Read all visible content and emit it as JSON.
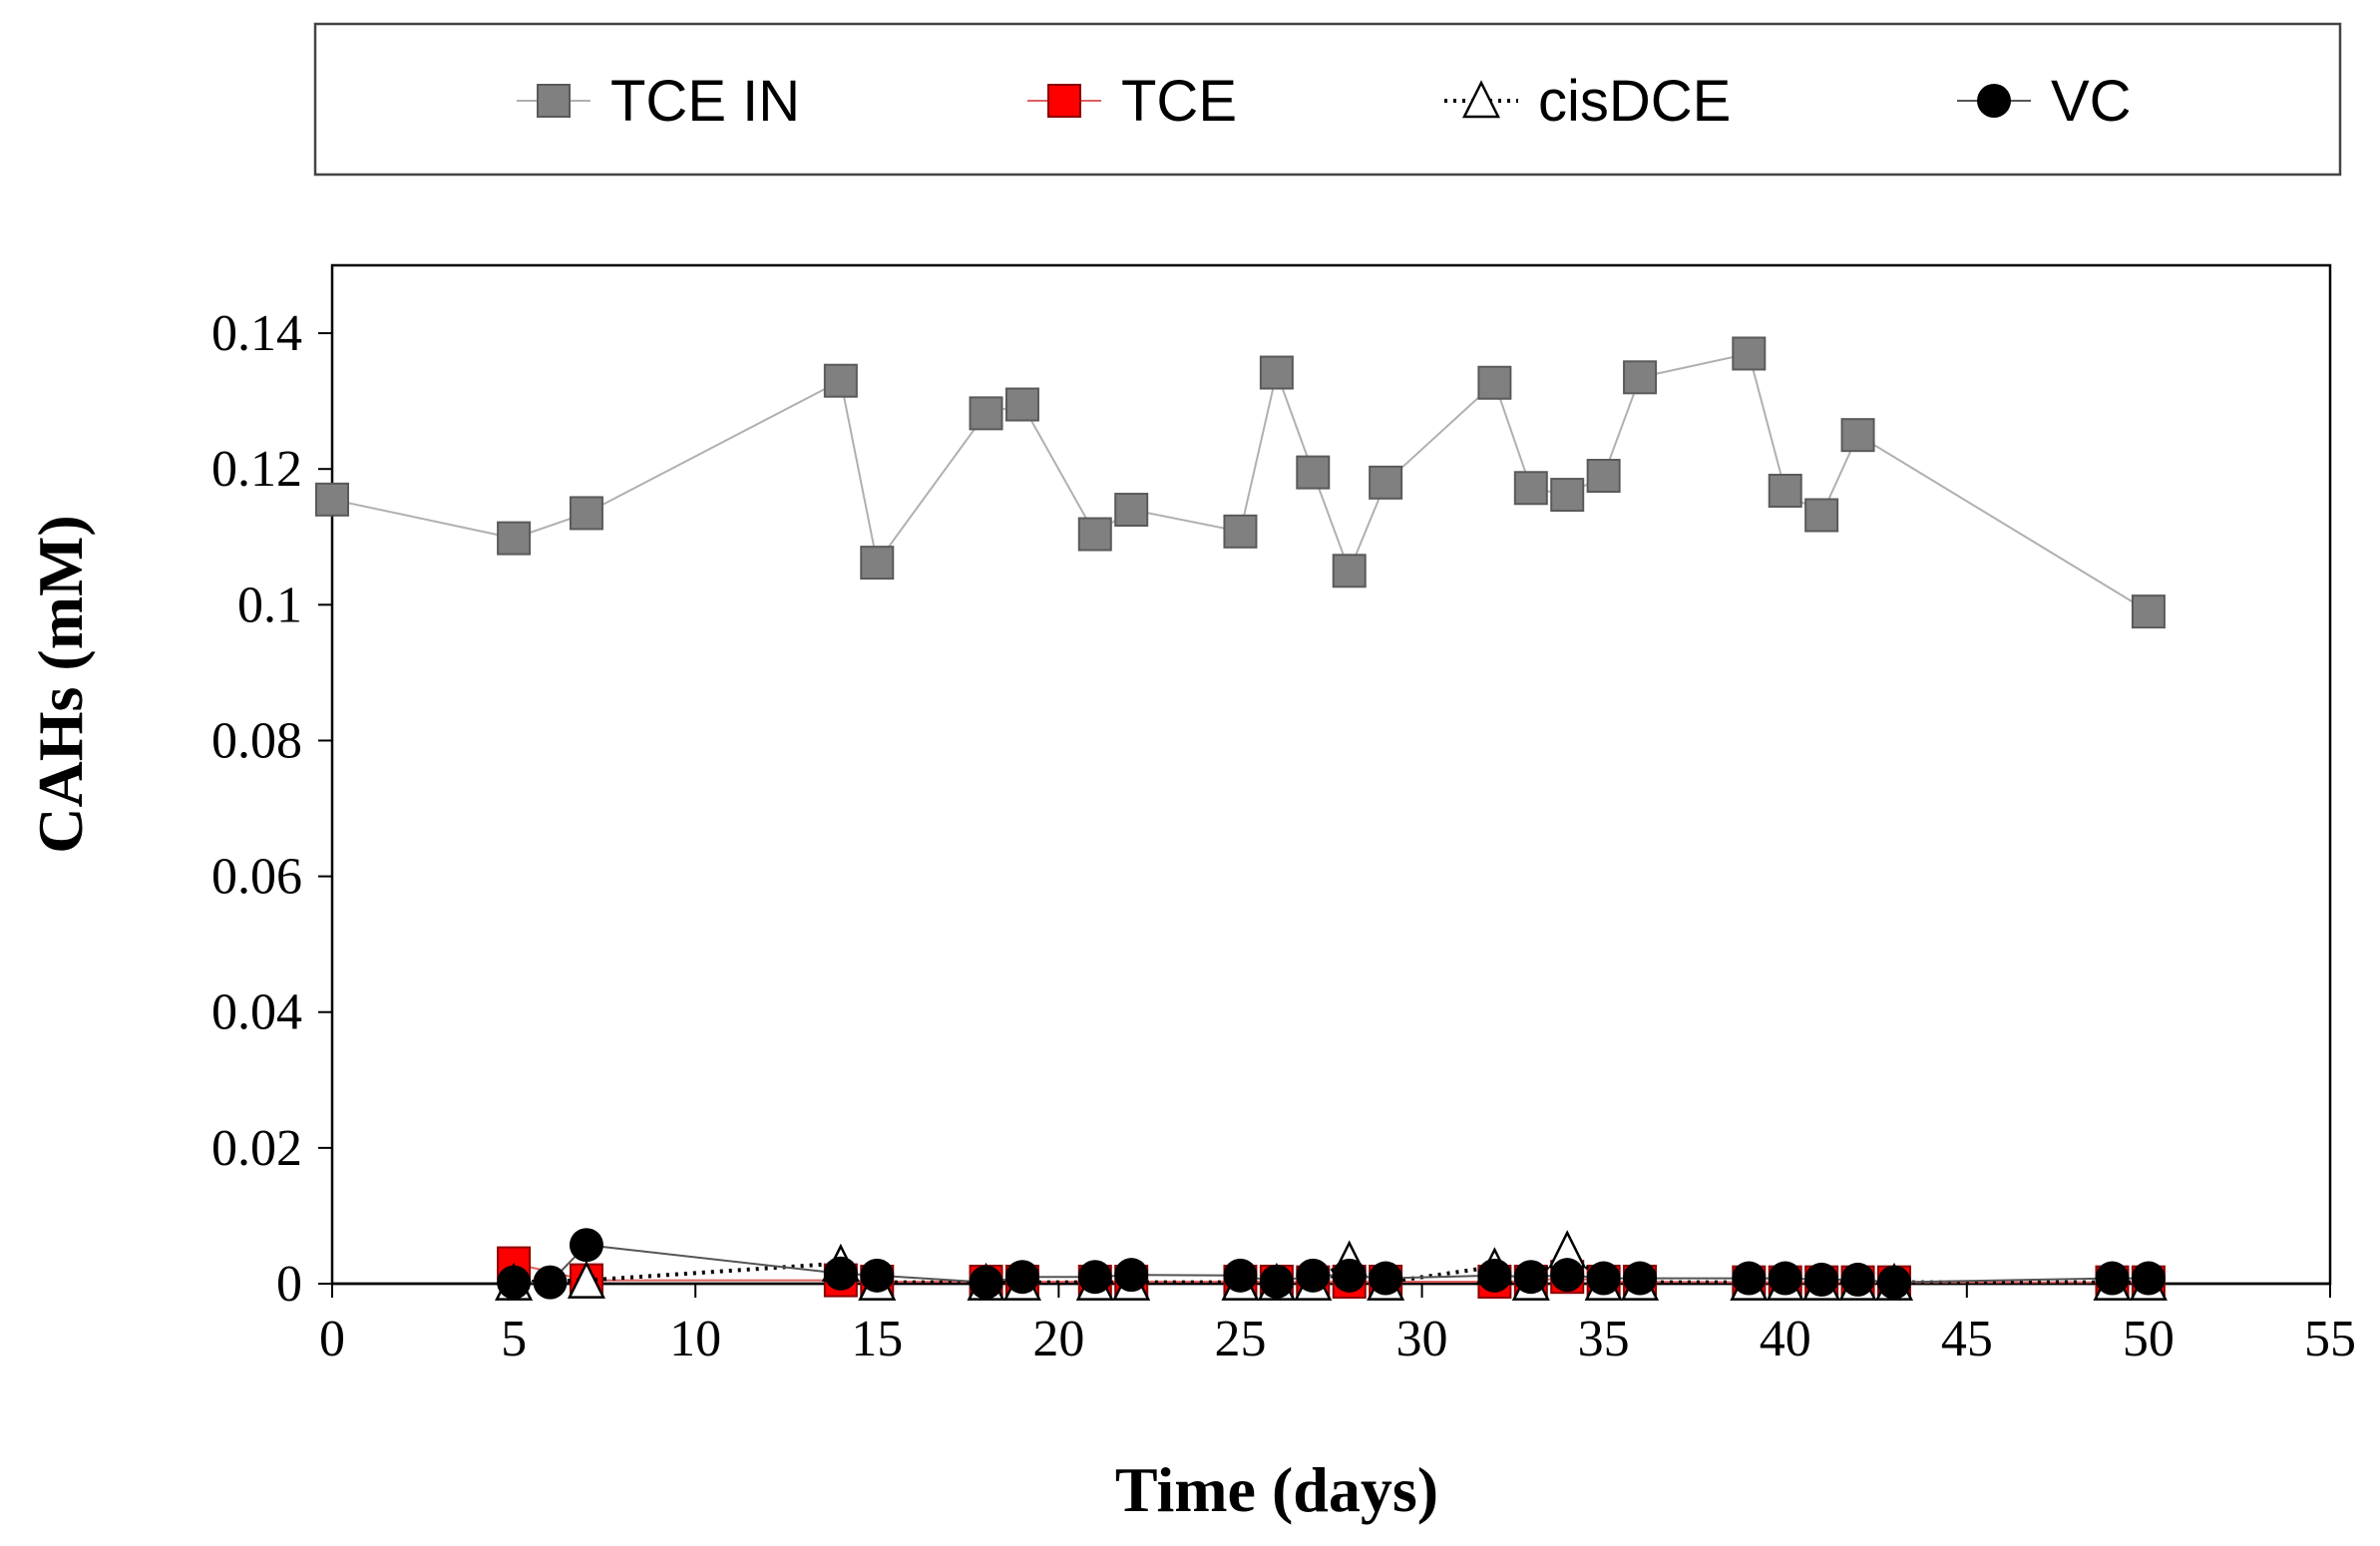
{
  "chart_data": {
    "type": "scatter",
    "title": "",
    "xlabel": "Time (days)",
    "ylabel": "CAHs (mM)",
    "xlim": [
      0,
      55
    ],
    "ylim": [
      0,
      0.15
    ],
    "xticks": [
      0,
      5,
      10,
      15,
      20,
      25,
      30,
      35,
      40,
      45,
      50,
      55
    ],
    "xtick_labels": [
      "0",
      "5",
      "10",
      "15",
      "20",
      "25",
      "30",
      "35",
      "40",
      "45",
      "50",
      "55"
    ],
    "yticks": [
      0,
      0.02,
      0.04,
      0.06,
      0.08,
      0.1,
      0.12,
      0.14
    ],
    "ytick_labels": [
      "0",
      "0.02",
      "0.04",
      "0.06",
      "0.08",
      "0.1",
      "0.12",
      "0.14"
    ],
    "grid": false,
    "legend_position": "top",
    "series": [
      {
        "name": "TCE IN",
        "marker": "square",
        "line": "solid",
        "color": "#808080",
        "line_color": "#b0b0b0",
        "x": [
          0,
          5,
          7,
          14,
          15,
          18,
          19,
          21,
          22,
          25,
          26,
          27,
          28,
          29,
          32,
          33,
          34,
          35,
          36,
          39,
          40,
          41,
          42,
          50
        ],
        "y": [
          0.1155,
          0.1098,
          0.1135,
          0.133,
          0.1062,
          0.1282,
          0.1295,
          0.1104,
          0.114,
          0.1108,
          0.1342,
          0.1195,
          0.105,
          0.118,
          0.1327,
          0.1172,
          0.1162,
          0.119,
          0.1335,
          0.137,
          0.1168,
          0.1132,
          0.125,
          0.099
        ]
      },
      {
        "name": "TCE",
        "marker": "square",
        "line": "solid",
        "color": "#ff0000",
        "line_color": "#e06060",
        "x": [
          5,
          7,
          14,
          15,
          18,
          19,
          21,
          22,
          25,
          26,
          27,
          28,
          29,
          32,
          33,
          34,
          35,
          36,
          39,
          40,
          41,
          42,
          43,
          49,
          50
        ],
        "y": [
          0.003,
          0.0005,
          0.0005,
          0.0003,
          0.0003,
          0.0003,
          0.0003,
          0.0003,
          0.0003,
          0.0003,
          0.0002,
          0.0003,
          0.0003,
          0.0003,
          0.0003,
          0.001,
          0.0003,
          0.0003,
          0.0002,
          0.0002,
          0.0002,
          0.0002,
          0.0002,
          0.0002,
          0.0002
        ]
      },
      {
        "name": "cisDCE",
        "marker": "triangle-open",
        "line": "dotted",
        "color": "#000000",
        "line_color": "#000000",
        "x": [
          5,
          7,
          14,
          15,
          18,
          19,
          21,
          22,
          25,
          26,
          27,
          28,
          29,
          32,
          33,
          34,
          35,
          36,
          39,
          40,
          41,
          42,
          43,
          49,
          50
        ],
        "y": [
          0.0002,
          0.0005,
          0.003,
          0.0002,
          0.0002,
          0.0002,
          0.0002,
          0.0002,
          0.0002,
          0.0002,
          0.0002,
          0.0035,
          0.0002,
          0.0025,
          0.0002,
          0.005,
          0.0002,
          0.0002,
          0.0002,
          0.0002,
          0.0002,
          0.0002,
          0.0002,
          0.0002,
          0.0002
        ]
      },
      {
        "name": "VC",
        "marker": "circle",
        "line": "solid",
        "color": "#000000",
        "line_color": "#555555",
        "x": [
          5,
          6,
          7,
          14,
          15,
          18,
          19,
          21,
          22,
          25,
          26,
          27,
          28,
          29,
          32,
          33,
          34,
          35,
          36,
          39,
          40,
          41,
          42,
          43,
          49,
          50
        ],
        "y": [
          0.0002,
          0.0002,
          0.0057,
          0.0015,
          0.0012,
          0.0002,
          0.001,
          0.001,
          0.0013,
          0.0012,
          0.0003,
          0.0012,
          0.0012,
          0.0008,
          0.0012,
          0.001,
          0.0013,
          0.0008,
          0.0008,
          0.0008,
          0.0008,
          0.0006,
          0.0006,
          0.0002,
          0.0008,
          0.0008
        ]
      }
    ]
  }
}
